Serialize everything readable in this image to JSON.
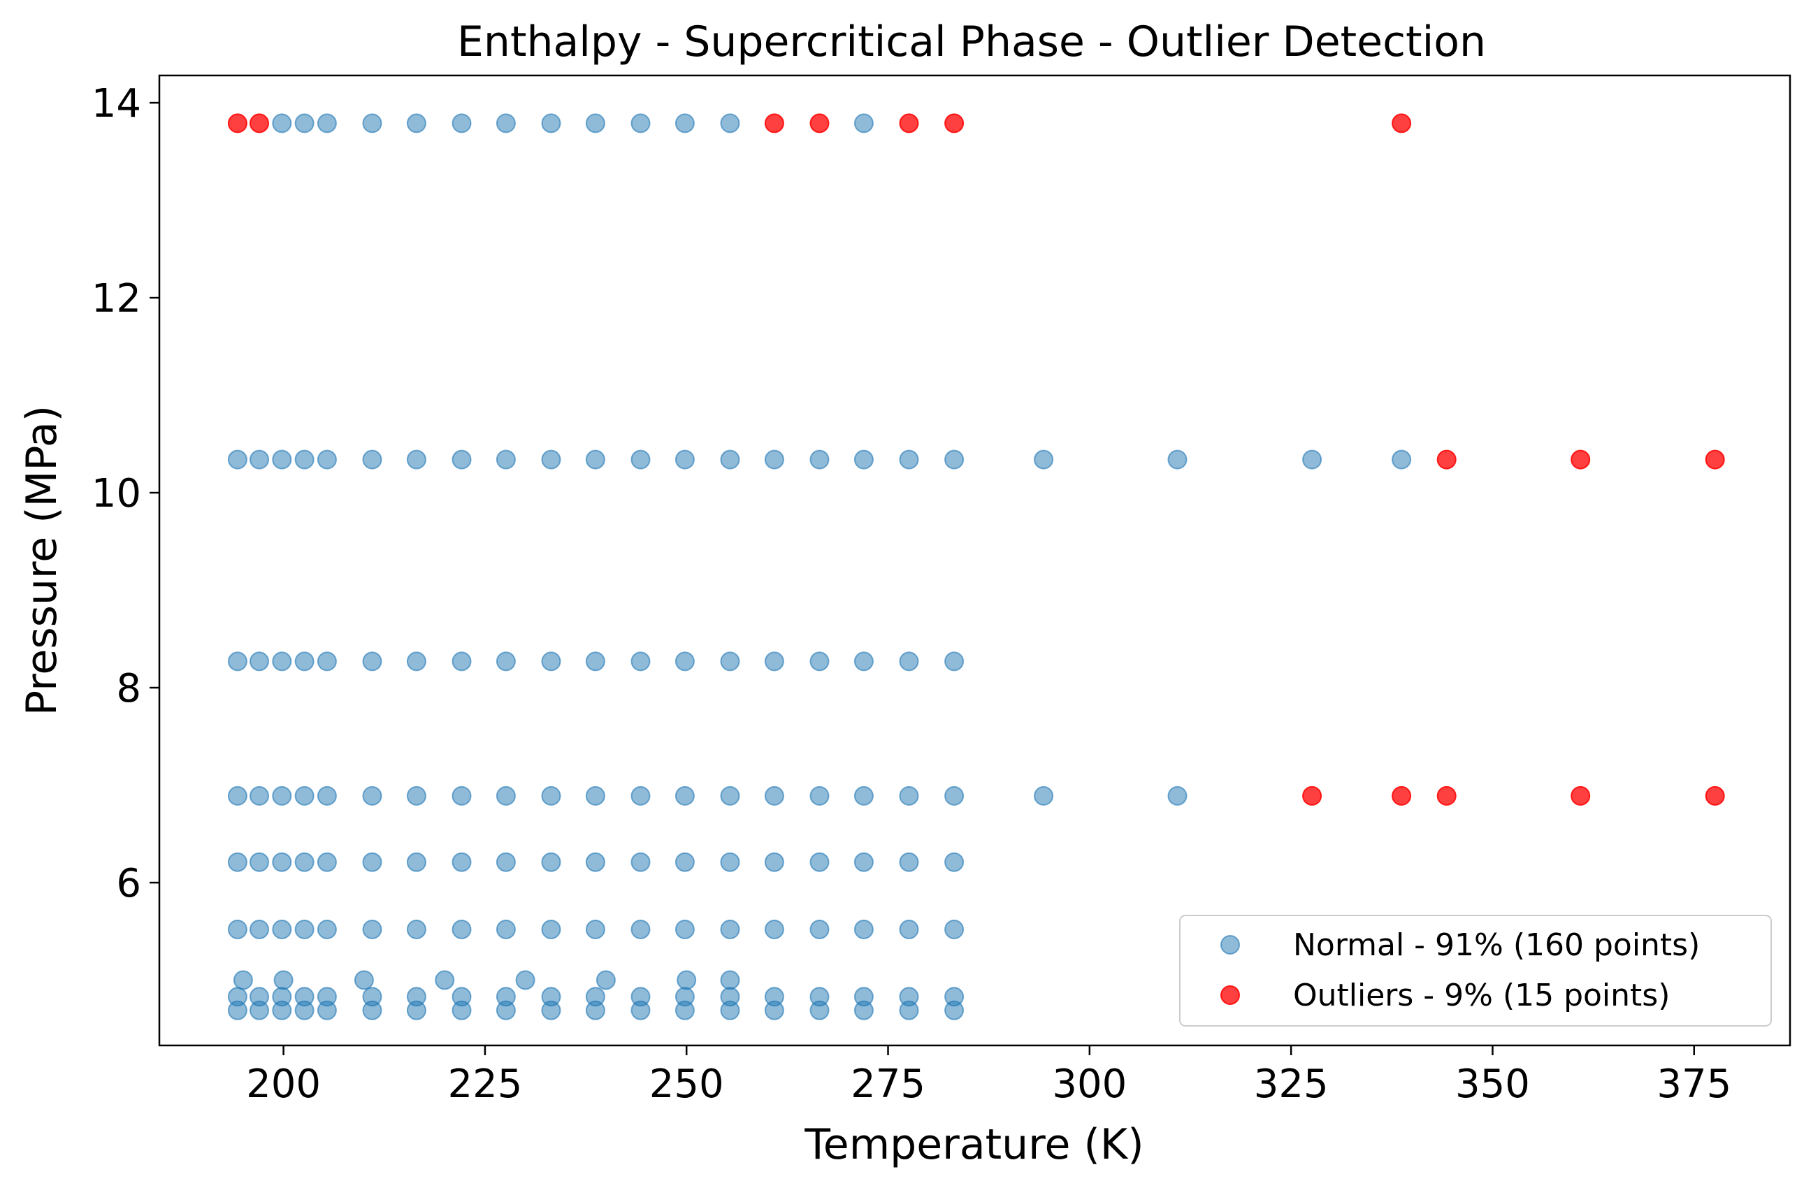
{
  "chart_data": {
    "type": "scatter",
    "title": "Enthalpy - Supercritical Phase - Outlier Detection",
    "xlabel": "Temperature (K)",
    "ylabel": "Pressure (MPa)",
    "xlim": [
      184.6,
      386.9
    ],
    "ylim": [
      4.33,
      14.28
    ],
    "xticks": [
      200,
      225,
      250,
      275,
      300,
      325,
      350,
      375
    ],
    "xtick_labels": [
      "200",
      "225",
      "250",
      "275",
      "300",
      "325",
      "350",
      "375"
    ],
    "yticks": [
      6,
      8,
      10,
      12,
      14
    ],
    "ytick_labels": [
      "6",
      "8",
      "10",
      "12",
      "14"
    ],
    "grid": false,
    "legend_position": "lower-right",
    "series": [
      {
        "name": "Normal - 91% (160 points)",
        "color": "#1f77b4",
        "points": [
          [
            199.8,
            13.79
          ],
          [
            202.6,
            13.79
          ],
          [
            205.4,
            13.79
          ],
          [
            211.0,
            13.79
          ],
          [
            216.5,
            13.79
          ],
          [
            222.1,
            13.79
          ],
          [
            227.6,
            13.79
          ],
          [
            233.2,
            13.79
          ],
          [
            238.7,
            13.79
          ],
          [
            244.3,
            13.79
          ],
          [
            249.8,
            13.79
          ],
          [
            255.4,
            13.79
          ],
          [
            272.0,
            13.79
          ],
          [
            194.3,
            10.34
          ],
          [
            197.0,
            10.34
          ],
          [
            199.8,
            10.34
          ],
          [
            202.6,
            10.34
          ],
          [
            205.4,
            10.34
          ],
          [
            211.0,
            10.34
          ],
          [
            216.5,
            10.34
          ],
          [
            222.1,
            10.34
          ],
          [
            227.6,
            10.34
          ],
          [
            233.2,
            10.34
          ],
          [
            238.7,
            10.34
          ],
          [
            244.3,
            10.34
          ],
          [
            249.8,
            10.34
          ],
          [
            255.4,
            10.34
          ],
          [
            260.9,
            10.34
          ],
          [
            266.5,
            10.34
          ],
          [
            272.0,
            10.34
          ],
          [
            277.6,
            10.34
          ],
          [
            283.2,
            10.34
          ],
          [
            294.3,
            10.34
          ],
          [
            310.9,
            10.34
          ],
          [
            327.6,
            10.34
          ],
          [
            338.7,
            10.34
          ],
          [
            194.3,
            8.27
          ],
          [
            197.0,
            8.27
          ],
          [
            199.8,
            8.27
          ],
          [
            202.6,
            8.27
          ],
          [
            205.4,
            8.27
          ],
          [
            211.0,
            8.27
          ],
          [
            216.5,
            8.27
          ],
          [
            222.1,
            8.27
          ],
          [
            227.6,
            8.27
          ],
          [
            233.2,
            8.27
          ],
          [
            238.7,
            8.27
          ],
          [
            244.3,
            8.27
          ],
          [
            249.8,
            8.27
          ],
          [
            255.4,
            8.27
          ],
          [
            260.9,
            8.27
          ],
          [
            266.5,
            8.27
          ],
          [
            272.0,
            8.27
          ],
          [
            277.6,
            8.27
          ],
          [
            283.2,
            8.27
          ],
          [
            194.3,
            6.89
          ],
          [
            197.0,
            6.89
          ],
          [
            199.8,
            6.89
          ],
          [
            202.6,
            6.89
          ],
          [
            205.4,
            6.89
          ],
          [
            211.0,
            6.89
          ],
          [
            216.5,
            6.89
          ],
          [
            222.1,
            6.89
          ],
          [
            227.6,
            6.89
          ],
          [
            233.2,
            6.89
          ],
          [
            238.7,
            6.89
          ],
          [
            244.3,
            6.89
          ],
          [
            249.8,
            6.89
          ],
          [
            255.4,
            6.89
          ],
          [
            260.9,
            6.89
          ],
          [
            266.5,
            6.89
          ],
          [
            272.0,
            6.89
          ],
          [
            277.6,
            6.89
          ],
          [
            283.2,
            6.89
          ],
          [
            294.3,
            6.89
          ],
          [
            310.9,
            6.89
          ],
          [
            194.3,
            6.21
          ],
          [
            197.0,
            6.21
          ],
          [
            199.8,
            6.21
          ],
          [
            202.6,
            6.21
          ],
          [
            205.4,
            6.21
          ],
          [
            211.0,
            6.21
          ],
          [
            216.5,
            6.21
          ],
          [
            222.1,
            6.21
          ],
          [
            227.6,
            6.21
          ],
          [
            233.2,
            6.21
          ],
          [
            238.7,
            6.21
          ],
          [
            244.3,
            6.21
          ],
          [
            249.8,
            6.21
          ],
          [
            255.4,
            6.21
          ],
          [
            260.9,
            6.21
          ],
          [
            266.5,
            6.21
          ],
          [
            272.0,
            6.21
          ],
          [
            277.6,
            6.21
          ],
          [
            283.2,
            6.21
          ],
          [
            194.3,
            5.52
          ],
          [
            197.0,
            5.52
          ],
          [
            199.8,
            5.52
          ],
          [
            202.6,
            5.52
          ],
          [
            205.4,
            5.52
          ],
          [
            211.0,
            5.52
          ],
          [
            216.5,
            5.52
          ],
          [
            222.1,
            5.52
          ],
          [
            227.6,
            5.52
          ],
          [
            233.2,
            5.52
          ],
          [
            238.7,
            5.52
          ],
          [
            244.3,
            5.52
          ],
          [
            249.8,
            5.52
          ],
          [
            255.4,
            5.52
          ],
          [
            260.9,
            5.52
          ],
          [
            266.5,
            5.52
          ],
          [
            272.0,
            5.52
          ],
          [
            277.6,
            5.52
          ],
          [
            283.2,
            5.52
          ],
          [
            195.0,
            5.0
          ],
          [
            200.0,
            5.0
          ],
          [
            210.0,
            5.0
          ],
          [
            220.0,
            5.0
          ],
          [
            230.0,
            5.0
          ],
          [
            240.0,
            5.0
          ],
          [
            250.0,
            5.0
          ],
          [
            255.4,
            5.0
          ],
          [
            194.3,
            4.83
          ],
          [
            197.0,
            4.83
          ],
          [
            199.8,
            4.83
          ],
          [
            202.6,
            4.83
          ],
          [
            205.4,
            4.83
          ],
          [
            211.0,
            4.83
          ],
          [
            216.5,
            4.83
          ],
          [
            222.1,
            4.83
          ],
          [
            227.6,
            4.83
          ],
          [
            233.2,
            4.83
          ],
          [
            238.7,
            4.83
          ],
          [
            244.3,
            4.83
          ],
          [
            249.8,
            4.83
          ],
          [
            255.4,
            4.83
          ],
          [
            260.9,
            4.83
          ],
          [
            266.5,
            4.83
          ],
          [
            272.0,
            4.83
          ],
          [
            277.6,
            4.83
          ],
          [
            283.2,
            4.83
          ],
          [
            194.3,
            4.69
          ],
          [
            197.0,
            4.69
          ],
          [
            199.8,
            4.69
          ],
          [
            202.6,
            4.69
          ],
          [
            205.4,
            4.69
          ],
          [
            211.0,
            4.69
          ],
          [
            216.5,
            4.69
          ],
          [
            222.1,
            4.69
          ],
          [
            227.6,
            4.69
          ],
          [
            233.2,
            4.69
          ],
          [
            238.7,
            4.69
          ],
          [
            244.3,
            4.69
          ],
          [
            249.8,
            4.69
          ],
          [
            255.4,
            4.69
          ],
          [
            260.9,
            4.69
          ],
          [
            266.5,
            4.69
          ],
          [
            272.0,
            4.69
          ],
          [
            277.6,
            4.69
          ],
          [
            283.2,
            4.69
          ]
        ]
      },
      {
        "name": "Outliers - 9% (15 points)",
        "color": "#ff0000",
        "points": [
          [
            194.3,
            13.79
          ],
          [
            197.0,
            13.79
          ],
          [
            260.9,
            13.79
          ],
          [
            266.5,
            13.79
          ],
          [
            277.6,
            13.79
          ],
          [
            283.2,
            13.79
          ],
          [
            338.7,
            13.79
          ],
          [
            344.3,
            10.34
          ],
          [
            360.9,
            10.34
          ],
          [
            377.6,
            10.34
          ],
          [
            327.6,
            6.89
          ],
          [
            338.7,
            6.89
          ],
          [
            344.3,
            6.89
          ],
          [
            360.9,
            6.89
          ],
          [
            377.6,
            6.89
          ]
        ]
      }
    ]
  }
}
